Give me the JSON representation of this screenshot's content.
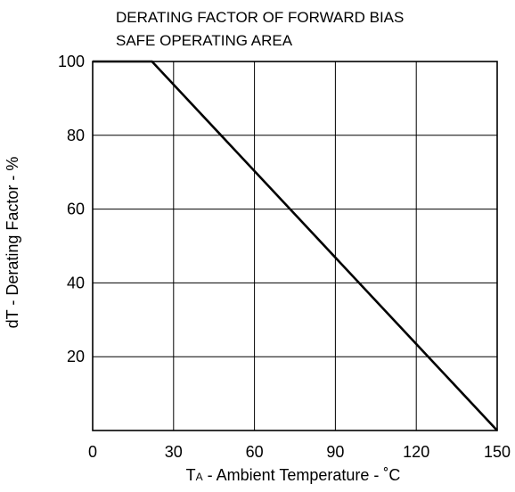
{
  "chart_data": {
    "type": "line",
    "title_lines": [
      "DERATING FACTOR OF FORWARD BIAS",
      "SAFE OPERATING AREA"
    ],
    "xlabel": "TA - Ambient Temperature - ˚C",
    "xlabel_parts": {
      "main": "T",
      "subscript": "A",
      "rest": " - Ambient Temperature - ˚C"
    },
    "ylabel": "dT - Derating Factor - %",
    "xlim": [
      0,
      150
    ],
    "ylim": [
      0,
      100
    ],
    "x_ticks": [
      0,
      30,
      60,
      90,
      120,
      150
    ],
    "y_ticks": [
      20,
      40,
      60,
      80,
      100
    ],
    "x_tick_labels": [
      "0",
      "30",
      "60",
      "90",
      "120",
      "150"
    ],
    "y_tick_labels": [
      "20",
      "40",
      "60",
      "80",
      "100"
    ],
    "grid": true,
    "series": [
      {
        "x": [
          0,
          22,
          150
        ],
        "y": [
          100,
          100,
          0
        ]
      }
    ]
  }
}
